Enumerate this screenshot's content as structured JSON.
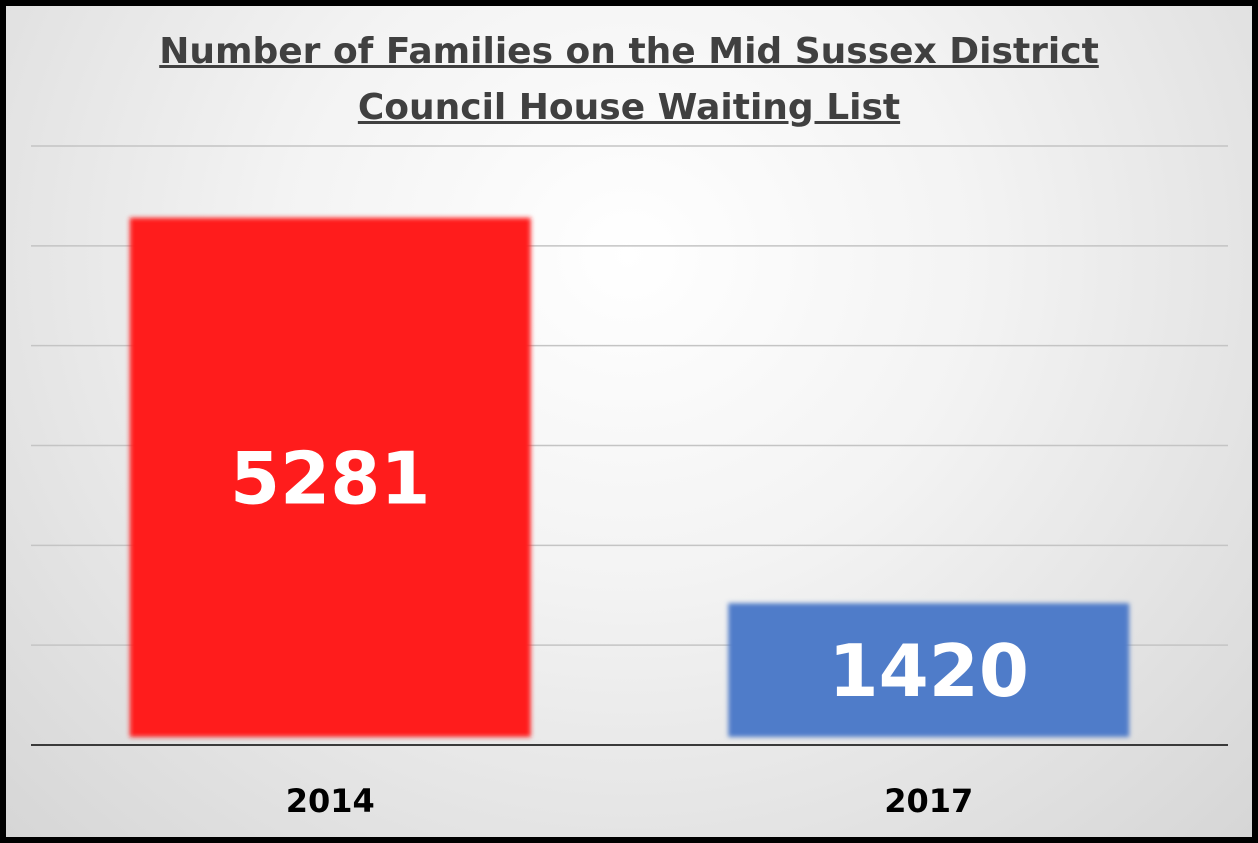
{
  "chart_data": {
    "type": "bar",
    "title": [
      "Number of Families on the Mid Sussex District",
      "Council House Waiting List"
    ],
    "categories": [
      "2014",
      "2017"
    ],
    "values": [
      5281,
      1420
    ],
    "data_labels": [
      "5281",
      "1420"
    ],
    "colors": [
      "#ff1a1a",
      "#4f7cc9"
    ],
    "ylim": [
      0,
      6000
    ],
    "gridlines": true,
    "legend": "none"
  }
}
